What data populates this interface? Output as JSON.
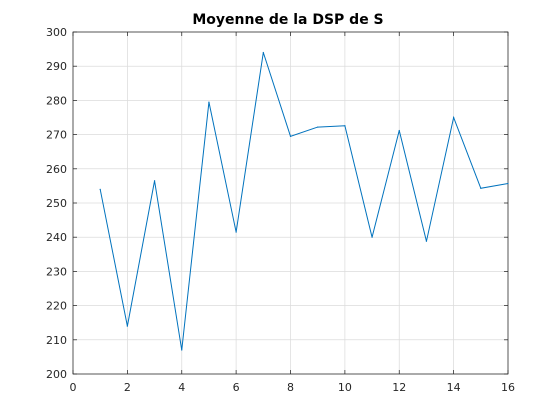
{
  "chart_data": {
    "type": "line",
    "title": "Moyenne de la DSP de S",
    "xlabel": "",
    "ylabel": "",
    "xlim": [
      0,
      16
    ],
    "ylim": [
      200,
      300
    ],
    "x_ticks": [
      0,
      2,
      4,
      6,
      8,
      10,
      12,
      14,
      16
    ],
    "y_ticks": [
      200,
      210,
      220,
      230,
      240,
      250,
      260,
      270,
      280,
      290,
      300
    ],
    "grid": true,
    "series": [
      {
        "color": "#0072BD",
        "x": [
          1,
          2,
          3,
          4,
          5,
          6,
          7,
          8,
          9,
          10,
          11,
          12,
          13,
          14,
          15,
          16
        ],
        "y": [
          254,
          214,
          256.5,
          207,
          279.5,
          241.5,
          294,
          269.5,
          272.2,
          272.6,
          240,
          271.2,
          238.8,
          275,
          254.3,
          255.7
        ]
      }
    ]
  }
}
